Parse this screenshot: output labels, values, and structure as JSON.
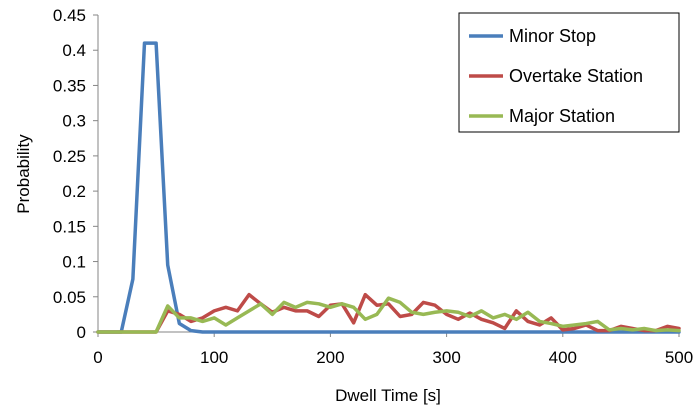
{
  "chart_data": {
    "type": "line",
    "xlabel": "Dwell Time [s]",
    "ylabel": "Probability",
    "xlim": [
      0,
      500
    ],
    "ylim": [
      0,
      0.45
    ],
    "xticks": [
      0,
      100,
      200,
      300,
      400,
      500
    ],
    "xtick_labels": [
      "0",
      "100",
      "200",
      "300",
      "400",
      "500"
    ],
    "yticks": [
      0,
      0.05,
      0.1,
      0.15,
      0.2,
      0.25,
      0.3,
      0.35,
      0.4,
      0.45
    ],
    "ytick_labels": [
      "0",
      "0.05",
      "0.1",
      "0.15",
      "0.2",
      "0.25",
      "0.3",
      "0.35",
      "0.4",
      "0.45"
    ],
    "grid": false,
    "legend_position": "top-right",
    "series": [
      {
        "name": "Minor Stop",
        "color": "#4a7ebb",
        "x": [
          0,
          10,
          20,
          30,
          40,
          50,
          60,
          70,
          80,
          90,
          100,
          150,
          200,
          250,
          300,
          350,
          400,
          450,
          500
        ],
        "y": [
          0,
          0,
          0,
          0.075,
          0.41,
          0.41,
          0.095,
          0.012,
          0.002,
          0,
          0,
          0,
          0,
          0,
          0,
          0,
          0,
          0,
          0
        ]
      },
      {
        "name": "Overtake Station",
        "color": "#be4b48",
        "x": [
          0,
          10,
          20,
          30,
          40,
          50,
          60,
          70,
          80,
          90,
          100,
          110,
          120,
          130,
          140,
          150,
          160,
          170,
          180,
          190,
          200,
          210,
          220,
          230,
          240,
          250,
          260,
          270,
          280,
          290,
          300,
          310,
          320,
          330,
          340,
          350,
          360,
          370,
          380,
          390,
          400,
          410,
          420,
          430,
          440,
          450,
          460,
          470,
          480,
          490,
          500
        ],
        "y": [
          0,
          0,
          0,
          0,
          0,
          0,
          0.03,
          0.025,
          0.015,
          0.02,
          0.03,
          0.035,
          0.03,
          0.053,
          0.04,
          0.028,
          0.035,
          0.03,
          0.03,
          0.022,
          0.038,
          0.04,
          0.013,
          0.053,
          0.038,
          0.04,
          0.022,
          0.025,
          0.042,
          0.038,
          0.025,
          0.018,
          0.027,
          0.018,
          0.013,
          0.005,
          0.03,
          0.015,
          0.01,
          0.02,
          0.003,
          0.005,
          0.01,
          0.002,
          0.002,
          0.008,
          0.005,
          0.002,
          0.002,
          0.008,
          0.005
        ]
      },
      {
        "name": "Major Station",
        "color": "#98b954",
        "x": [
          0,
          10,
          20,
          30,
          40,
          50,
          60,
          70,
          80,
          90,
          100,
          110,
          120,
          130,
          140,
          150,
          160,
          170,
          180,
          190,
          200,
          210,
          220,
          230,
          240,
          250,
          260,
          270,
          280,
          290,
          300,
          310,
          320,
          330,
          340,
          350,
          360,
          370,
          380,
          390,
          400,
          410,
          420,
          430,
          440,
          450,
          460,
          470,
          480,
          490,
          500
        ],
        "y": [
          0,
          0,
          0,
          0,
          0,
          0,
          0.037,
          0.02,
          0.02,
          0.015,
          0.02,
          0.01,
          0.02,
          0.03,
          0.04,
          0.025,
          0.042,
          0.035,
          0.042,
          0.04,
          0.035,
          0.04,
          0.035,
          0.018,
          0.025,
          0.048,
          0.042,
          0.028,
          0.025,
          0.028,
          0.03,
          0.028,
          0.022,
          0.03,
          0.02,
          0.025,
          0.018,
          0.028,
          0.015,
          0.012,
          0.008,
          0.01,
          0.012,
          0.015,
          0.003,
          0.005,
          0.003,
          0.005,
          0.002,
          0.003,
          0.002
        ]
      }
    ]
  }
}
